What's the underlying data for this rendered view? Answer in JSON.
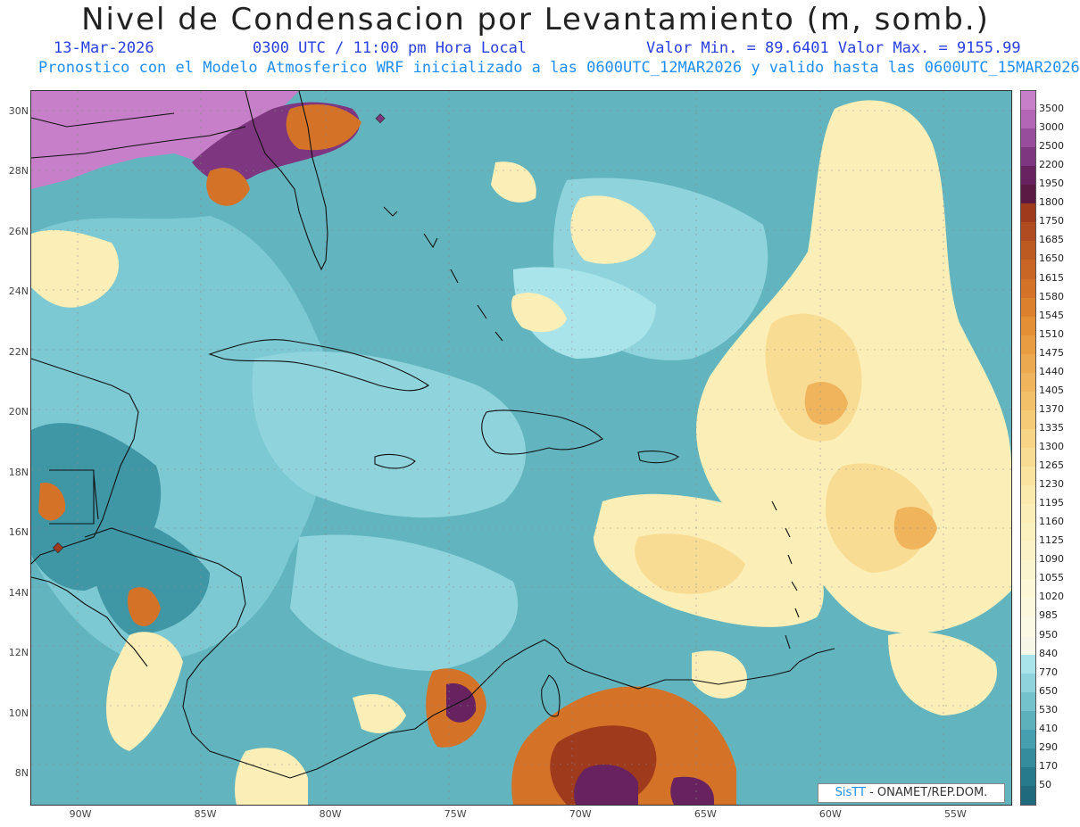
{
  "title": "Nivel de Condensacion por Levantamiento (m, somb.)",
  "subtitle": {
    "date": "13-Mar-2026",
    "time": "0300 UTC / 11:00 pm Hora Local",
    "minmax": "Valor Min. = 89.6401  Valor Max. = 9155.99",
    "forecast": "Pronostico con el Modelo Atmosferico WRF inicializado a las 0600UTC_12MAR2026 y valido hasta las  0600UTC_15MAR2026"
  },
  "axes": {
    "lat_labels": [
      "30N",
      "28N",
      "26N",
      "24N",
      "22N",
      "20N",
      "18N",
      "16N",
      "14N",
      "12N",
      "10N",
      "8N"
    ],
    "lon_labels": [
      "90W",
      "85W",
      "80W",
      "75W",
      "70W",
      "65W",
      "60W",
      "55W"
    ],
    "lat_values": [
      30,
      28,
      26,
      24,
      22,
      20,
      18,
      16,
      14,
      12,
      10,
      8
    ],
    "lon_values": [
      -90,
      -85,
      -80,
      -75,
      -70,
      -65,
      -60,
      -55
    ],
    "lat_range": [
      7.0,
      30.7
    ],
    "lon_range": [
      -92.0,
      -52.8
    ]
  },
  "colorbar": {
    "labels": [
      "3500",
      "3000",
      "2500",
      "2200",
      "1950",
      "1800",
      "1750",
      "1685",
      "1650",
      "1615",
      "1580",
      "1545",
      "1510",
      "1475",
      "1440",
      "1405",
      "1370",
      "1335",
      "1300",
      "1265",
      "1230",
      "1195",
      "1160",
      "1125",
      "1090",
      "1055",
      "1020",
      "985",
      "950",
      "840",
      "770",
      "650",
      "530",
      "410",
      "290",
      "170",
      "50"
    ],
    "colors": [
      "#c77fc9",
      "#b366b5",
      "#984d9c",
      "#7e3680",
      "#67225f",
      "#5a1a44",
      "#a03a1c",
      "#b04a20",
      "#bd5a22",
      "#c96525",
      "#d47228",
      "#dc802e",
      "#e48e36",
      "#e99c42",
      "#eda94f",
      "#f0b55c",
      "#f3c06a",
      "#f5cb78",
      "#f7d486",
      "#f8dc93",
      "#f9e39f",
      "#faeaab",
      "#fbeeb6",
      "#fbf1bf",
      "#fbf3c7",
      "#fbf5cf",
      "#fbf7d7",
      "#fbf8de",
      "#fbf9e3",
      "#f7f7e8",
      "#a8e4ea",
      "#8fd3dc",
      "#74c2cc",
      "#5cb1bd",
      "#469fae",
      "#358c9d",
      "#277a8c",
      "#1f6b7d"
    ]
  },
  "map": {
    "background_color": "#62b5bf",
    "palette": {
      "light_teal": "#8fd3dc",
      "cyan": "#a8e4ea",
      "teal": "#5cb1bd",
      "dark_teal": "#3f97a6",
      "light_yellow": "#fbeeb6",
      "yellow": "#f8dc93",
      "tan": "#f0b55c",
      "orange": "#d47228",
      "rust": "#a03a1c",
      "maroon": "#67225f",
      "purple": "#984d9c",
      "lilac": "#c77fc9"
    }
  },
  "credit": {
    "logo_text": "SisTT",
    "text": "- ONAMET/REP.DOM."
  }
}
